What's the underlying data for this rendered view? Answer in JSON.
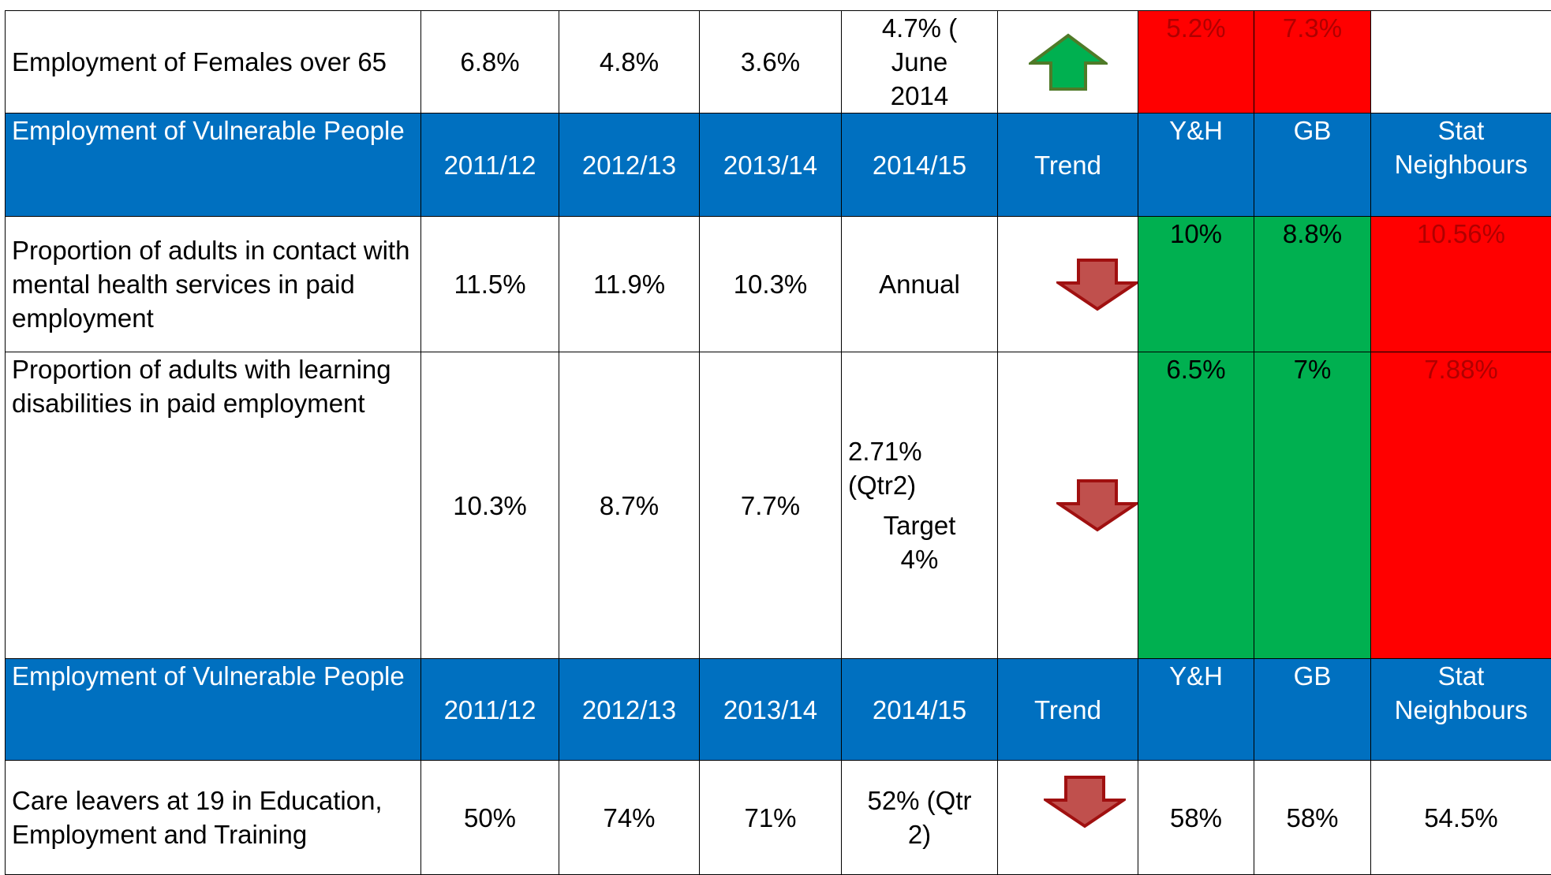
{
  "table": {
    "rows": [
      [
        "Employment of Females over 65",
        "6.8%",
        "4.8%",
        "3.6%",
        "4.7% ( June 2014",
        "5.2%",
        "7.3%"
      ],
      [
        "Employment of Vulnerable People",
        "2011/12",
        "2012/13",
        "2013/14",
        "2014/15",
        "Trend",
        "Y&H",
        "GB",
        "Stat Neighbours"
      ],
      [
        "Proportion of adults in contact with mental health services in paid employment",
        "11.5%",
        "11.9%",
        "10.3%",
        "Annual",
        "10%",
        "8.8%",
        "10.56%"
      ],
      [
        "Proportion of adults with learning disabilities in paid employment",
        "10.3%",
        "8.7%",
        "7.7%",
        [
          "2.71%",
          "(Qtr2)"
        ],
        [
          "Target",
          "4%"
        ],
        "6.5%",
        "7%",
        "7.88%"
      ],
      [
        "Employment of Vulnerable People",
        "2011/12",
        "2012/13",
        "2013/14",
        "2014/15",
        "Trend",
        "Y&H",
        "GB",
        "Stat Neighbours"
      ],
      [
        "Care leavers at 19 in Education, Employment and Training",
        "50%",
        "74%",
        "71%",
        "52% (Qtr 2)",
        "58%",
        "58%",
        "54.5%"
      ]
    ]
  }
}
